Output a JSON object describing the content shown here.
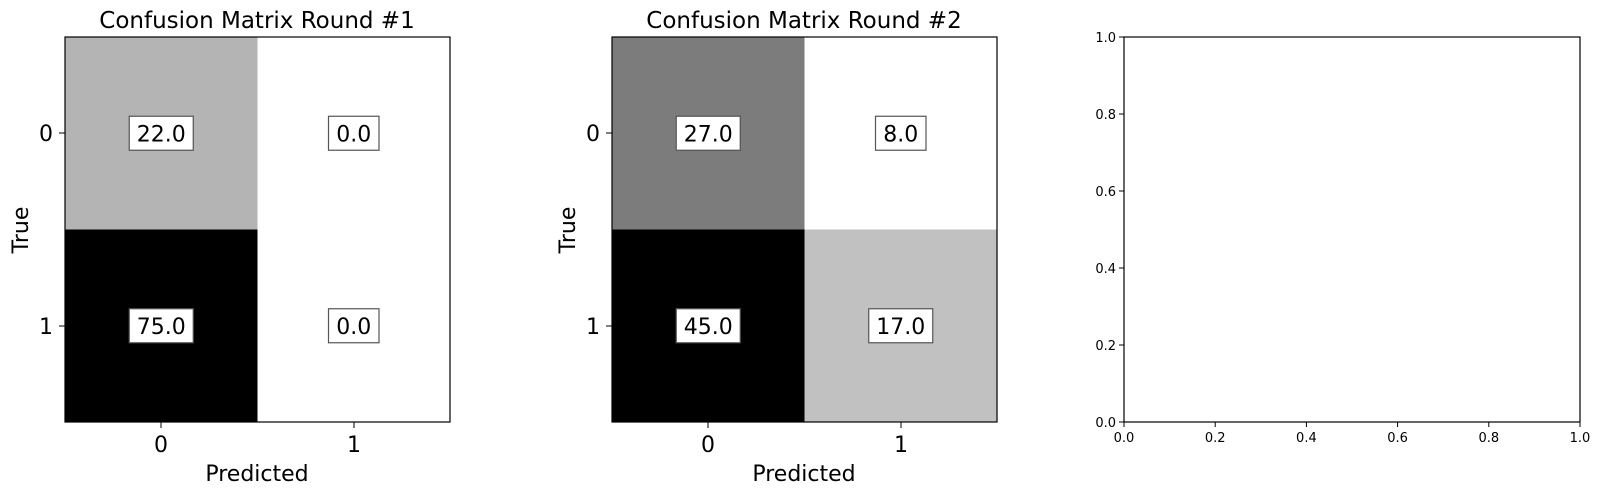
{
  "chart_data": [
    {
      "type": "heatmap",
      "title": "Confusion Matrix Round #1",
      "xlabel": "Predicted",
      "ylabel": "True",
      "x_ticks": [
        "0",
        "1"
      ],
      "y_ticks": [
        "0",
        "1"
      ],
      "values": [
        [
          22.0,
          0.0
        ],
        [
          75.0,
          0.0
        ]
      ],
      "labels": [
        [
          "22.0",
          "0.0"
        ],
        [
          "75.0",
          "0.0"
        ]
      ],
      "colormap": "grayscale-reversed",
      "color_range": [
        0,
        75
      ],
      "grid": false
    },
    {
      "type": "heatmap",
      "title": "Confusion Matrix Round #2",
      "xlabel": "Predicted",
      "ylabel": "True",
      "x_ticks": [
        "0",
        "1"
      ],
      "y_ticks": [
        "0",
        "1"
      ],
      "values": [
        [
          27.0,
          8.0
        ],
        [
          45.0,
          17.0
        ]
      ],
      "labels": [
        [
          "27.0",
          "8.0"
        ],
        [
          "45.0",
          "17.0"
        ]
      ],
      "colormap": "grayscale-reversed",
      "color_range": [
        8,
        45
      ],
      "grid": false
    },
    {
      "type": "scatter",
      "title": "",
      "xlabel": "",
      "ylabel": "",
      "xlim": [
        0,
        1
      ],
      "ylim": [
        0,
        1
      ],
      "x_ticks": [
        "0.0",
        "0.2",
        "0.4",
        "0.6",
        "0.8",
        "1.0"
      ],
      "y_ticks": [
        "0.0",
        "0.2",
        "0.4",
        "0.6",
        "0.8",
        "1.0"
      ],
      "series": [],
      "grid": false
    }
  ]
}
